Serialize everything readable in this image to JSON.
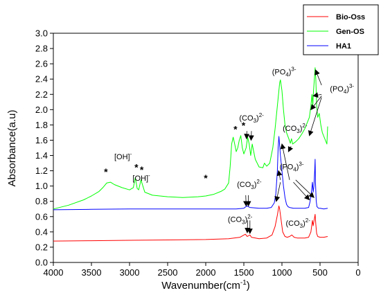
{
  "chart_data": {
    "type": "line",
    "xlabel": "Wavenumber(cm",
    "xlabel_sup": "-1",
    "xlabel_end": ")",
    "ylabel": "Absorbance(a.u)",
    "xlim": [
      4000,
      0
    ],
    "ylim": [
      0.0,
      3.0
    ],
    "x_ticks": [
      4000,
      3500,
      3000,
      2500,
      2000,
      1500,
      1000,
      500,
      0
    ],
    "x_tick_labels": [
      "4000",
      "3500",
      "3000",
      "2500",
      "2000",
      "1500",
      "1000",
      "500",
      "0"
    ],
    "y_ticks": [
      0.0,
      0.2,
      0.4,
      0.6,
      0.8,
      1.0,
      1.2,
      1.4,
      1.6,
      1.8,
      2.0,
      2.2,
      2.4,
      2.6,
      2.8,
      3.0
    ],
    "y_tick_labels": [
      "0.0",
      "0.2",
      "0.4",
      "0.6",
      "0.8",
      "1.0",
      "1.2",
      "1.4",
      "1.6",
      "1.8",
      "2.0",
      "2.2",
      "2.4",
      "2.6",
      "2.8",
      "3.0"
    ],
    "legend_position": "top-right",
    "grid": false,
    "series": [
      {
        "name": "Bio-Oss",
        "color": "#ff0000",
        "x": [
          4000,
          3500,
          3000,
          2500,
          2000,
          1700,
          1550,
          1480,
          1455,
          1420,
          1400,
          1300,
          1200,
          1130,
          1090,
          1060,
          1040,
          1030,
          1010,
          990,
          960,
          930,
          900,
          870,
          840,
          800,
          700,
          650,
          620,
          600,
          590,
          575,
          565,
          555,
          545,
          530,
          500,
          450,
          400
        ],
        "y": [
          0.28,
          0.285,
          0.29,
          0.295,
          0.3,
          0.31,
          0.33,
          0.37,
          0.34,
          0.36,
          0.33,
          0.31,
          0.32,
          0.36,
          0.47,
          0.62,
          0.74,
          0.7,
          0.55,
          0.4,
          0.34,
          0.33,
          0.34,
          0.36,
          0.33,
          0.32,
          0.32,
          0.33,
          0.4,
          0.55,
          0.48,
          0.57,
          0.63,
          0.5,
          0.38,
          0.34,
          0.33,
          0.33,
          0.34
        ]
      },
      {
        "name": "Gen-OS",
        "color": "#00ff00",
        "x": [
          4000,
          3800,
          3600,
          3500,
          3400,
          3350,
          3300,
          3250,
          3200,
          3100,
          3000,
          2950,
          2925,
          2900,
          2880,
          2850,
          2800,
          2700,
          2500,
          2300,
          2100,
          2000,
          1900,
          1800,
          1750,
          1700,
          1680,
          1660,
          1640,
          1620,
          1600,
          1580,
          1560,
          1540,
          1520,
          1500,
          1470,
          1450,
          1430,
          1410,
          1390,
          1370,
          1350,
          1300,
          1250,
          1230,
          1200,
          1160,
          1120,
          1090,
          1060,
          1040,
          1030,
          1020,
          1000,
          980,
          960,
          940,
          910,
          890,
          875,
          860,
          820,
          780,
          740,
          700,
          660,
          640,
          620,
          605,
          595,
          585,
          575,
          565,
          555,
          545,
          530,
          510,
          490,
          470,
          450,
          430,
          410,
          400
        ],
        "y": [
          0.7,
          0.75,
          0.82,
          0.87,
          0.93,
          0.98,
          1.04,
          1.05,
          1.02,
          0.98,
          0.95,
          0.98,
          1.11,
          0.97,
          0.95,
          1.08,
          0.92,
          0.88,
          0.86,
          0.85,
          0.86,
          0.87,
          0.89,
          0.93,
          0.96,
          1.04,
          1.25,
          1.55,
          1.64,
          1.55,
          1.45,
          1.5,
          1.6,
          1.66,
          1.5,
          1.42,
          1.5,
          1.64,
          1.55,
          1.4,
          1.55,
          1.45,
          1.35,
          1.25,
          1.24,
          1.3,
          1.26,
          1.3,
          1.5,
          1.75,
          2.05,
          2.25,
          2.35,
          2.39,
          2.25,
          2.0,
          1.8,
          1.7,
          1.62,
          1.56,
          1.62,
          1.55,
          1.58,
          1.62,
          1.68,
          1.75,
          1.85,
          1.9,
          2.05,
          2.2,
          2.05,
          2.25,
          2.4,
          2.55,
          2.4,
          2.05,
          1.9,
          1.95,
          1.8,
          1.7,
          1.65,
          1.6,
          1.55,
          1.78
        ]
      },
      {
        "name": "HA1",
        "color": "#0000ff",
        "x": [
          4000,
          3500,
          3000,
          2500,
          2000,
          1600,
          1500,
          1460,
          1420,
          1300,
          1200,
          1140,
          1100,
          1080,
          1060,
          1050,
          1040,
          1035,
          1020,
          1000,
          980,
          960,
          940,
          920,
          900,
          850,
          800,
          700,
          650,
          630,
          610,
          600,
          590,
          580,
          570,
          565,
          560,
          550,
          540,
          520,
          500,
          450,
          400
        ],
        "y": [
          0.69,
          0.695,
          0.7,
          0.7,
          0.7,
          0.7,
          0.71,
          0.74,
          0.72,
          0.71,
          0.71,
          0.72,
          0.78,
          0.9,
          1.2,
          1.5,
          1.65,
          1.6,
          1.4,
          1.2,
          1.0,
          0.85,
          0.76,
          0.73,
          0.72,
          0.71,
          0.71,
          0.71,
          0.72,
          0.8,
          0.95,
          1.05,
          0.92,
          1.0,
          1.2,
          1.35,
          1.05,
          0.8,
          0.73,
          0.71,
          0.71,
          0.7,
          0.71
        ]
      }
    ],
    "annotations": [
      {
        "text": "[OH]",
        "sup": "-",
        "x": 3200,
        "y": 1.35
      },
      {
        "text": "[OH]",
        "sup": "-",
        "x": 2960,
        "y": 1.07
      },
      {
        "text": "(PO",
        "sub": "4",
        "end": ")",
        "sup2": "3-",
        "x": 1130,
        "y": 2.46
      },
      {
        "text": "(PO",
        "sub": "4",
        "end": ")",
        "sup2": "3-",
        "x": 370,
        "y": 2.24
      },
      {
        "text": "(CO",
        "sub": "3",
        "end": ")",
        "sup2": "2-",
        "x": 1560,
        "y": 1.86
      },
      {
        "text": "(CO",
        "sub": "3",
        "end": ")",
        "sup2": "2-",
        "x": 990,
        "y": 1.72
      },
      {
        "text": "(PO",
        "sub": "4",
        "end": ")",
        "sup2": "3-",
        "x": 1030,
        "y": 1.22
      },
      {
        "text": "(CO",
        "sub": "3",
        "end": ")",
        "sup2": "2-",
        "x": 1590,
        "y": 0.99
      },
      {
        "text": "(CO",
        "sub": "3",
        "end": ")",
        "sup2": "2-",
        "x": 1710,
        "y": 0.53
      },
      {
        "text": "(CO",
        "sub": "3",
        "end": ")",
        "sup2": "2-",
        "x": 950,
        "y": 0.48
      }
    ],
    "stars": [
      {
        "x": 3310,
        "y": 1.14
      },
      {
        "x": 2910,
        "y": 1.2
      },
      {
        "x": 2840,
        "y": 1.17
      },
      {
        "x": 2000,
        "y": 1.06
      },
      {
        "x": 1610,
        "y": 1.7
      },
      {
        "x": 1505,
        "y": 1.75
      }
    ],
    "arrows": [
      {
        "from": [
          1460,
          1.72
        ],
        "to": [
          1465,
          1.62
        ]
      },
      {
        "from": [
          1400,
          1.72
        ],
        "to": [
          1405,
          1.6
        ]
      },
      {
        "from": [
          880,
          1.52
        ],
        "to": [
          915,
          1.45
        ]
      },
      {
        "from": [
          480,
          2.32
        ],
        "to": [
          560,
          2.52
        ]
      },
      {
        "from": [
          480,
          2.2
        ],
        "to": [
          590,
          2.18
        ]
      },
      {
        "from": [
          480,
          2.18
        ],
        "to": [
          620,
          2.0
        ]
      },
      {
        "from": [
          480,
          2.16
        ],
        "to": [
          640,
          1.66
        ]
      },
      {
        "from": [
          1020,
          1.08
        ],
        "to": [
          1045,
          1.2
        ]
      },
      {
        "from": [
          1020,
          1.05
        ],
        "to": [
          1075,
          0.8
        ]
      },
      {
        "from": [
          900,
          1.08
        ],
        "to": [
          1000,
          1.55
        ]
      },
      {
        "from": [
          850,
          1.05
        ],
        "to": [
          640,
          0.82
        ]
      },
      {
        "from": [
          820,
          1.08
        ],
        "to": [
          580,
          0.85
        ]
      },
      {
        "from": [
          1475,
          0.88
        ],
        "to": [
          1470,
          0.74
        ]
      },
      {
        "from": [
          1440,
          0.88
        ],
        "to": [
          1440,
          0.74
        ]
      },
      {
        "from": [
          1450,
          0.55
        ],
        "to": [
          1455,
          0.39
        ]
      },
      {
        "from": [
          1420,
          0.55
        ],
        "to": [
          1420,
          0.38
        ]
      }
    ]
  }
}
